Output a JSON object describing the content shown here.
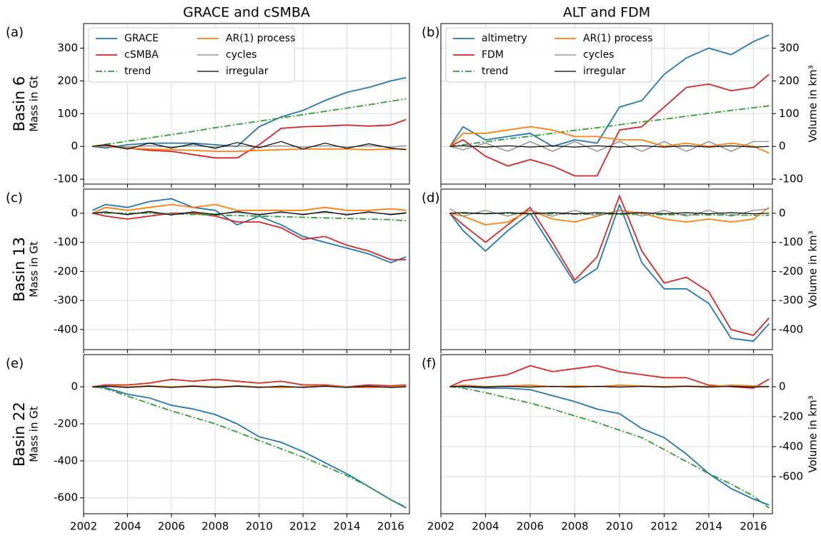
{
  "chart_data": [
    {
      "type": "line",
      "title": "GRACE and cSMBA",
      "panel_label": "(a)",
      "row_label": "Basin 6",
      "ylabel": "Mass in Gt",
      "axis_side": "left",
      "legend": "upper left",
      "grid": true,
      "show_xticklabels": false,
      "x": [
        2002.4,
        2003,
        2004,
        2005,
        2006,
        2007,
        2008,
        2009,
        2010,
        2011,
        2012,
        2013,
        2014,
        2015,
        2016,
        2016.7
      ],
      "xlim": [
        2002,
        2016.85
      ],
      "xticks": [
        2002,
        2004,
        2006,
        2008,
        2010,
        2012,
        2014,
        2016
      ],
      "ylim": [
        -115,
        375
      ],
      "yticks": [
        -100,
        0,
        100,
        200,
        300
      ],
      "series": [
        {
          "name": "GRACE",
          "color": "#1f77b4",
          "values": [
            0,
            -5,
            5,
            10,
            10,
            10,
            5,
            0,
            60,
            90,
            110,
            140,
            165,
            180,
            200,
            210
          ]
        },
        {
          "name": "cSMBA",
          "color": "#d62728",
          "values": [
            0,
            5,
            -5,
            -12,
            -15,
            -25,
            -35,
            -35,
            5,
            55,
            60,
            62,
            65,
            62,
            65,
            82
          ]
        },
        {
          "name": "trend",
          "color": "#2ca02c",
          "style": "dashdot",
          "values": [
            0,
            6,
            16,
            26,
            36,
            46,
            57,
            67,
            77,
            87,
            97,
            107,
            117,
            127,
            138,
            145
          ]
        },
        {
          "name": "AR(1) process",
          "color": "#ff7f0e",
          "values": [
            0,
            0,
            -5,
            -8,
            -10,
            -12,
            -15,
            -15,
            -12,
            -10,
            -8,
            -8,
            -8,
            -10,
            -8,
            -8
          ]
        },
        {
          "name": "cycles",
          "color": "#7f7f7f",
          "values": [
            0,
            2,
            -2,
            2,
            -2,
            2,
            -2,
            2,
            -2,
            2,
            -2,
            2,
            -2,
            2,
            -2,
            2
          ]
        },
        {
          "name": "irregular",
          "color": "#000000",
          "values": [
            0,
            5,
            -8,
            10,
            -5,
            8,
            -6,
            12,
            -4,
            15,
            -8,
            10,
            -6,
            8,
            -5,
            -10
          ]
        }
      ]
    },
    {
      "type": "line",
      "title": "ALT and FDM",
      "panel_label": "(b)",
      "ylabel": "Volume in km³",
      "axis_side": "right",
      "legend": "upper left",
      "grid": true,
      "show_xticklabels": false,
      "x": [
        2002.4,
        2003,
        2004,
        2005,
        2006,
        2007,
        2008,
        2009,
        2010,
        2011,
        2012,
        2013,
        2014,
        2015,
        2016,
        2016.7
      ],
      "xlim": [
        2002,
        2016.85
      ],
      "xticks": [
        2002,
        2004,
        2006,
        2008,
        2010,
        2012,
        2014,
        2016
      ],
      "ylim": [
        -115,
        375
      ],
      "yticks": [
        -100,
        0,
        100,
        200,
        300
      ],
      "series": [
        {
          "name": "altimetry",
          "color": "#1f77b4",
          "values": [
            0,
            60,
            20,
            30,
            40,
            0,
            20,
            10,
            120,
            140,
            220,
            270,
            300,
            280,
            320,
            340
          ]
        },
        {
          "name": "FDM",
          "color": "#d62728",
          "values": [
            0,
            20,
            -30,
            -60,
            -40,
            -60,
            -90,
            -90,
            50,
            60,
            120,
            180,
            190,
            170,
            180,
            220
          ]
        },
        {
          "name": "trend",
          "color": "#2ca02c",
          "style": "dashdot",
          "values": [
            0,
            5,
            14,
            23,
            31,
            40,
            49,
            57,
            66,
            75,
            83,
            92,
            101,
            110,
            118,
            124
          ]
        },
        {
          "name": "AR(1) process",
          "color": "#ff7f0e",
          "values": [
            0,
            40,
            40,
            50,
            60,
            50,
            30,
            30,
            20,
            20,
            0,
            10,
            0,
            10,
            0,
            -20
          ]
        },
        {
          "name": "cycles",
          "color": "#7f7f7f",
          "values": [
            0,
            -10,
            10,
            -15,
            15,
            -15,
            15,
            -15,
            15,
            -15,
            15,
            -15,
            15,
            -15,
            15,
            15
          ]
        },
        {
          "name": "irregular",
          "color": "#000000",
          "values": [
            0,
            2,
            -2,
            2,
            -2,
            2,
            -2,
            2,
            -2,
            2,
            -2,
            2,
            -2,
            2,
            -2,
            0
          ]
        }
      ]
    },
    {
      "type": "line",
      "panel_label": "(c)",
      "row_label": "Basin 13",
      "ylabel": "Mass in Gt",
      "axis_side": "left",
      "grid": true,
      "show_xticklabels": false,
      "x": [
        2002.4,
        2003,
        2004,
        2005,
        2006,
        2007,
        2008,
        2009,
        2010,
        2011,
        2012,
        2013,
        2014,
        2015,
        2016,
        2016.7
      ],
      "xlim": [
        2002,
        2016.85
      ],
      "xticks": [
        2002,
        2004,
        2006,
        2008,
        2010,
        2012,
        2014,
        2016
      ],
      "ylim": [
        -469,
        83
      ],
      "yticks": [
        -400,
        -300,
        -200,
        -100,
        0
      ],
      "series": [
        {
          "color": "#1f77b4",
          "values": [
            10,
            30,
            20,
            40,
            50,
            20,
            10,
            -40,
            -10,
            -40,
            -80,
            -100,
            -120,
            -140,
            -170,
            -150
          ]
        },
        {
          "color": "#d62728",
          "values": [
            0,
            -10,
            -20,
            -10,
            0,
            0,
            -10,
            -30,
            -30,
            -50,
            -90,
            -80,
            -110,
            -130,
            -160,
            -160
          ]
        },
        {
          "color": "#2ca02c",
          "style": "dashdot",
          "values": [
            0,
            0,
            0,
            0,
            -2,
            -4,
            -6,
            -8,
            -10,
            -12,
            -14,
            -16,
            -18,
            -20,
            -22,
            -26
          ]
        },
        {
          "color": "#ff7f0e",
          "values": [
            0,
            20,
            10,
            20,
            30,
            20,
            30,
            10,
            10,
            10,
            10,
            20,
            10,
            10,
            15,
            10
          ]
        },
        {
          "color": "#7f7f7f",
          "values": [
            0,
            3,
            -3,
            3,
            -3,
            3,
            -3,
            3,
            -3,
            3,
            -3,
            3,
            -3,
            3,
            -3,
            3
          ]
        },
        {
          "color": "#000000",
          "values": [
            0,
            5,
            -5,
            6,
            -6,
            5,
            -5,
            6,
            -6,
            5,
            -5,
            6,
            -6,
            5,
            -5,
            0
          ]
        }
      ]
    },
    {
      "type": "line",
      "panel_label": "(d)",
      "ylabel": "Volume in km³",
      "axis_side": "right",
      "grid": true,
      "show_xticklabels": false,
      "x": [
        2002.4,
        2003,
        2004,
        2005,
        2006,
        2007,
        2008,
        2009,
        2010,
        2011,
        2012,
        2013,
        2014,
        2015,
        2016,
        2016.7
      ],
      "xlim": [
        2002,
        2016.85
      ],
      "xticks": [
        2002,
        2004,
        2006,
        2008,
        2010,
        2012,
        2014,
        2016
      ],
      "ylim": [
        -469,
        83
      ],
      "yticks": [
        -400,
        -300,
        -200,
        -100,
        0
      ],
      "series": [
        {
          "color": "#1f77b4",
          "values": [
            0,
            -60,
            -130,
            -60,
            0,
            -120,
            -240,
            -190,
            30,
            -170,
            -260,
            -260,
            -310,
            -430,
            -440,
            -380
          ]
        },
        {
          "color": "#d62728",
          "values": [
            0,
            -40,
            -100,
            -40,
            20,
            -100,
            -230,
            -150,
            60,
            -130,
            -240,
            -220,
            -270,
            -400,
            -420,
            -360
          ]
        },
        {
          "color": "#2ca02c",
          "style": "dashdot",
          "values": [
            0,
            0,
            -1,
            -1,
            -2,
            -2,
            -3,
            -3,
            -4,
            -4,
            -5,
            -5,
            -6,
            -6,
            -7,
            -7
          ]
        },
        {
          "color": "#ff7f0e",
          "values": [
            0,
            -10,
            -40,
            -30,
            10,
            -20,
            -30,
            -10,
            10,
            0,
            -20,
            -30,
            -20,
            -30,
            -20,
            20
          ]
        },
        {
          "color": "#7f7f7f",
          "values": [
            15,
            -10,
            10,
            -10,
            10,
            -10,
            10,
            -10,
            10,
            -10,
            10,
            -10,
            10,
            -10,
            10,
            15
          ]
        },
        {
          "color": "#000000",
          "values": [
            0,
            2,
            -2,
            2,
            -2,
            2,
            -2,
            2,
            -2,
            2,
            -2,
            2,
            -2,
            2,
            -2,
            0
          ]
        }
      ]
    },
    {
      "type": "line",
      "panel_label": "(e)",
      "row_label": "Basin 22",
      "ylabel": "Mass in Gt",
      "axis_side": "left",
      "grid": true,
      "show_xticklabels": true,
      "x": [
        2002.4,
        2003,
        2004,
        2005,
        2006,
        2007,
        2008,
        2009,
        2010,
        2011,
        2012,
        2013,
        2014,
        2015,
        2016,
        2016.7
      ],
      "xlim": [
        2002,
        2016.85
      ],
      "xticks": [
        2002,
        2004,
        2006,
        2008,
        2010,
        2012,
        2014,
        2016
      ],
      "ylim": [
        -686,
        174
      ],
      "yticks": [
        -600,
        -400,
        -200,
        0
      ],
      "series": [
        {
          "color": "#1f77b4",
          "values": [
            0,
            -5,
            -40,
            -60,
            -100,
            -120,
            -150,
            -200,
            -270,
            -300,
            -350,
            -410,
            -470,
            -540,
            -610,
            -655
          ]
        },
        {
          "color": "#d62728",
          "values": [
            0,
            10,
            10,
            20,
            40,
            30,
            40,
            30,
            20,
            30,
            10,
            10,
            0,
            10,
            5,
            10
          ]
        },
        {
          "color": "#2ca02c",
          "style": "dashdot",
          "values": [
            0,
            -10,
            -50,
            -90,
            -130,
            -165,
            -200,
            -245,
            -290,
            -335,
            -380,
            -430,
            -480,
            -540,
            -610,
            -650
          ]
        },
        {
          "color": "#ff7f0e",
          "values": [
            0,
            5,
            0,
            5,
            0,
            5,
            0,
            5,
            0,
            -5,
            0,
            5,
            0,
            -5,
            0,
            5
          ]
        },
        {
          "color": "#7f7f7f",
          "values": [
            0,
            2,
            -2,
            2,
            -2,
            2,
            -2,
            2,
            -2,
            2,
            -2,
            2,
            -2,
            2,
            -2,
            2
          ]
        },
        {
          "color": "#000000",
          "values": [
            0,
            4,
            -4,
            4,
            -4,
            4,
            -4,
            4,
            -4,
            4,
            -4,
            4,
            -4,
            4,
            -4,
            0
          ]
        }
      ]
    },
    {
      "type": "line",
      "panel_label": "(f)",
      "ylabel": "Volume in km³",
      "axis_side": "right",
      "grid": true,
      "show_xticklabels": true,
      "x": [
        2002.4,
        2003,
        2004,
        2005,
        2006,
        2007,
        2008,
        2009,
        2010,
        2011,
        2012,
        2013,
        2014,
        2015,
        2016,
        2016.7
      ],
      "xlim": [
        2002,
        2016.85
      ],
      "xticks": [
        2002,
        2004,
        2006,
        2008,
        2010,
        2012,
        2014,
        2016
      ],
      "ylim": [
        -848,
        214
      ],
      "yticks": [
        -600,
        -400,
        -200,
        0
      ],
      "series": [
        {
          "color": "#1f77b4",
          "values": [
            0,
            0,
            -10,
            -10,
            -20,
            -60,
            -100,
            -150,
            -180,
            -280,
            -340,
            -450,
            -580,
            -680,
            -750,
            -790
          ]
        },
        {
          "color": "#d62728",
          "values": [
            0,
            40,
            60,
            80,
            140,
            100,
            120,
            140,
            100,
            80,
            60,
            60,
            10,
            0,
            -10,
            50
          ]
        },
        {
          "color": "#2ca02c",
          "style": "dashdot",
          "values": [
            0,
            -10,
            -40,
            -75,
            -110,
            -150,
            -195,
            -240,
            -290,
            -340,
            -420,
            -500,
            -580,
            -650,
            -730,
            -810
          ]
        },
        {
          "color": "#ff7f0e",
          "values": [
            0,
            10,
            0,
            5,
            10,
            0,
            5,
            0,
            10,
            5,
            0,
            5,
            0,
            10,
            5,
            0
          ]
        },
        {
          "color": "#7f7f7f",
          "values": [
            0,
            3,
            -3,
            3,
            -3,
            3,
            -3,
            3,
            -3,
            3,
            -3,
            3,
            -3,
            3,
            -3,
            3
          ]
        },
        {
          "color": "#000000",
          "values": [
            0,
            2,
            -2,
            2,
            -2,
            2,
            -2,
            2,
            -2,
            2,
            -2,
            2,
            -2,
            2,
            -2,
            0
          ]
        }
      ]
    }
  ]
}
